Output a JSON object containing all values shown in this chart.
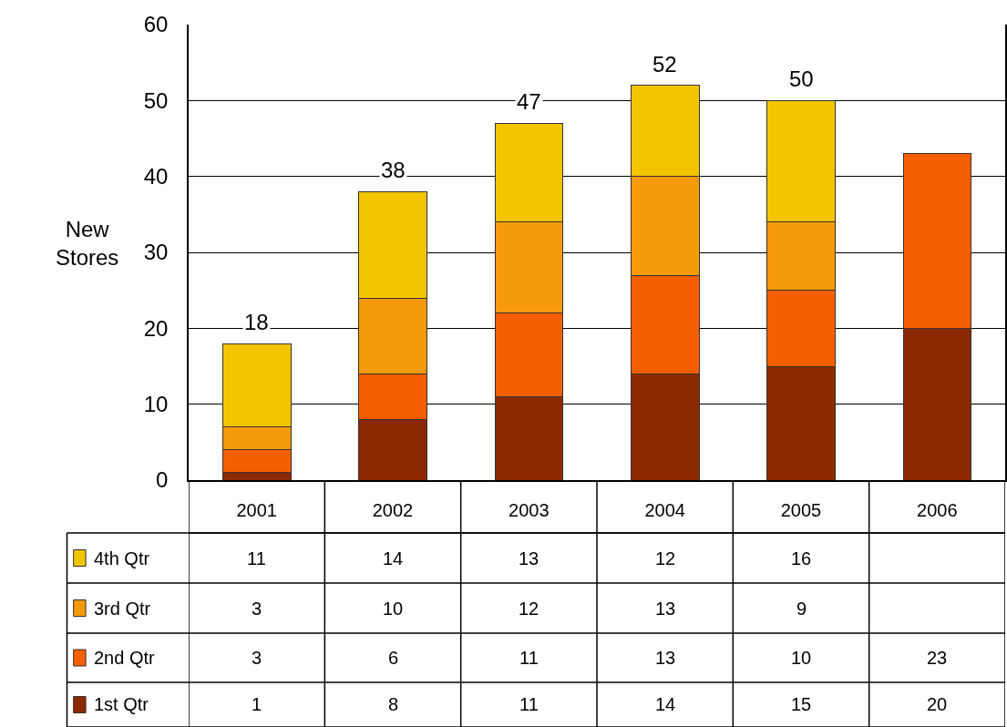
{
  "chart_data": {
    "type": "bar",
    "ylabel": "New Stores",
    "categories": [
      "2001",
      "2002",
      "2003",
      "2004",
      "2005",
      "2006"
    ],
    "stacked": true,
    "series": [
      {
        "name": "1st Qtr",
        "color": "#8b2a00",
        "values": [
          1,
          8,
          11,
          14,
          15,
          20
        ]
      },
      {
        "name": "2nd Qtr",
        "color": "#f55f00",
        "values": [
          3,
          6,
          11,
          13,
          10,
          23
        ]
      },
      {
        "name": "3rd Qtr",
        "color": "#f59a0a",
        "values": [
          3,
          10,
          12,
          13,
          9,
          null
        ]
      },
      {
        "name": "4th Qtr",
        "color": "#f2c500",
        "values": [
          11,
          14,
          13,
          12,
          16,
          null
        ]
      }
    ],
    "totals": [
      "18",
      "38",
      "47",
      "52",
      "50",
      null
    ],
    "data_labels": true,
    "ylim": [
      0,
      60
    ],
    "yticks": [
      0,
      10,
      20,
      30,
      40,
      50,
      60
    ],
    "grid": "y",
    "legend": "bottom left"
  }
}
